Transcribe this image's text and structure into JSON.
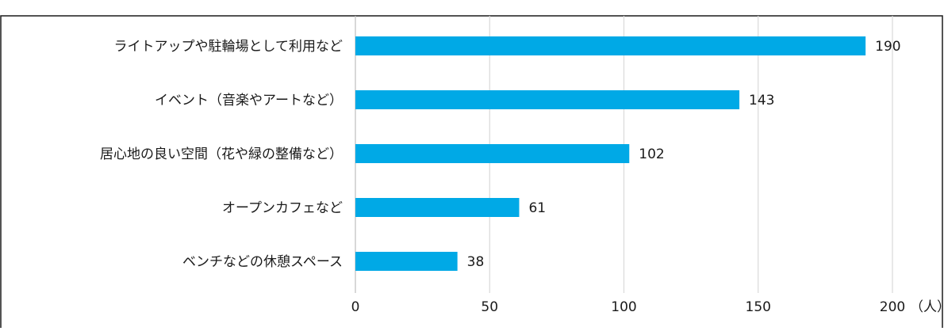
{
  "chart_data": {
    "type": "bar",
    "orientation": "horizontal",
    "categories": [
      "ライトアップや駐輪場として利用など",
      "イベント（音楽やアートなど）",
      "居心地の良い空間（花や緑の整備など）",
      "オープンカフェなど",
      "ベンチなどの休憩スペース"
    ],
    "values": [
      190,
      143,
      102,
      61,
      38
    ],
    "value_labels": [
      "190",
      "143",
      "102",
      "61",
      "38"
    ],
    "xlim": [
      0,
      200
    ],
    "ticks": [
      0,
      50,
      100,
      150,
      200
    ],
    "tick_labels": [
      "0",
      "50",
      "100",
      "150",
      "200"
    ],
    "x_unit": "（人）",
    "grid": true,
    "colors": {
      "bar": "#00a9e6",
      "grid": "#d9d9d9",
      "border": "#1a1a1a"
    }
  }
}
